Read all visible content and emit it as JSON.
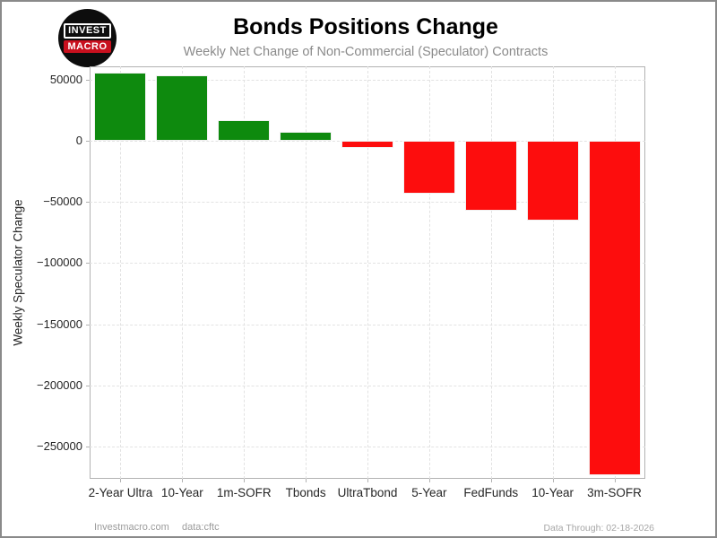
{
  "logo": {
    "line1": "INVEST",
    "line2": "MACRO",
    "circle_color": "#0d0d0d",
    "accent_color": "#c8101e"
  },
  "header": {
    "title": "Bonds Positions Change",
    "subtitle": "Weekly Net Change of Non-Commercial (Speculator) Contracts"
  },
  "footer": {
    "site": "Investmacro.com",
    "source": "data:cftc",
    "data_through": "Data Through: 02-18-2026"
  },
  "chart_data": {
    "type": "bar",
    "title": "Bonds Positions Change",
    "subtitle": "Weekly Net Change of Non-Commercial (Speculator) Contracts",
    "xlabel": "",
    "ylabel": "Weekly Speculator Change",
    "categories": [
      "2-Year Ultra",
      "10-Year",
      "1m-SOFR",
      "Tbonds",
      "UltraTbond",
      "5-Year",
      "FedFunds",
      "10-Year",
      "3m-SOFR"
    ],
    "values": [
      55800,
      53800,
      16700,
      7400,
      -5800,
      -43300,
      -57400,
      -65300,
      -273500
    ],
    "yticks": [
      50000,
      0,
      -50000,
      -100000,
      -150000,
      -200000,
      -250000
    ],
    "ylim": [
      -276500,
      61000
    ],
    "grid": "dashed-both",
    "legend": "none",
    "positive_color": "#0e8a0e",
    "negative_color": "#fd0d0d",
    "bar_edge_color": "#f2f2f2"
  }
}
